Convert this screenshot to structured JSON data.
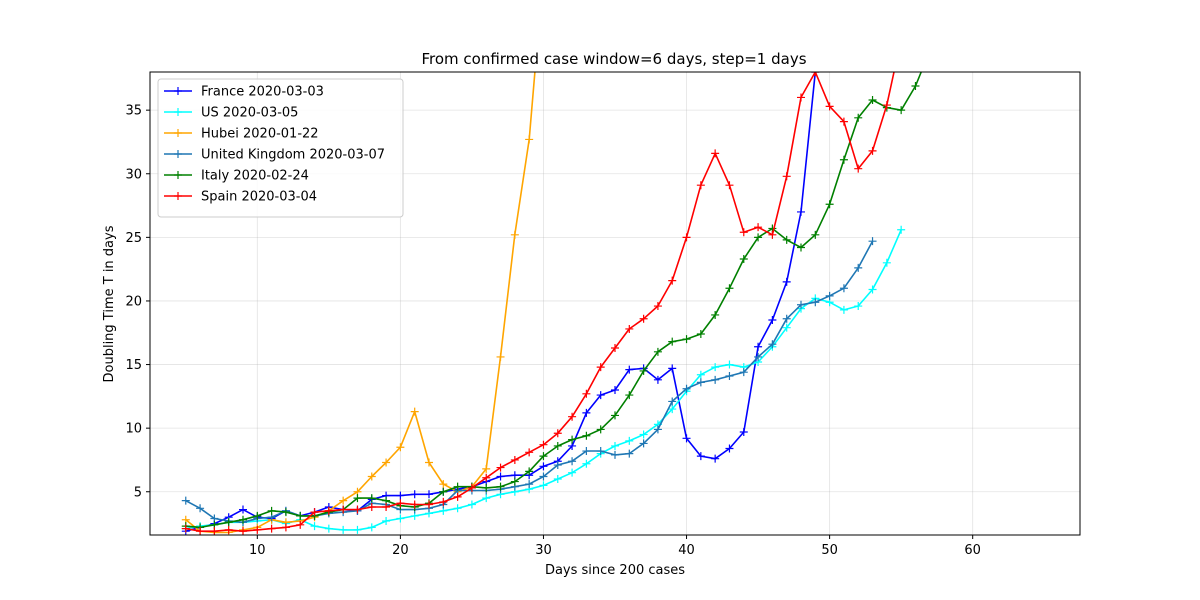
{
  "chart_data": {
    "type": "line",
    "title": "From confirmed case window=6 days, step=1 days",
    "xlabel": "Days since 200 cases",
    "ylabel": "Doubling Time T in days",
    "xlim": [
      2.5,
      67.5
    ],
    "ylim": [
      1.6,
      38
    ],
    "xticks": [
      10,
      20,
      30,
      40,
      50,
      60
    ],
    "yticks": [
      5,
      10,
      15,
      20,
      25,
      30,
      35
    ],
    "grid": true,
    "legend_position": "top-left",
    "marker": "plus",
    "series": [
      {
        "name": "France 2020-03-03",
        "color": "#0000ff",
        "x": [
          5,
          6,
          7,
          8,
          9,
          10,
          11,
          12,
          13,
          14,
          15,
          16,
          17,
          18,
          19,
          20,
          21,
          22,
          23,
          24,
          25,
          26,
          27,
          28,
          29,
          30,
          31,
          32,
          33,
          34,
          35,
          36,
          37,
          38,
          39,
          40,
          41,
          42,
          43,
          44,
          45,
          46,
          47,
          48,
          49
        ],
        "y": [
          1.9,
          2.2,
          2.5,
          3.0,
          3.6,
          3.0,
          2.9,
          3.5,
          3.1,
          3.4,
          3.8,
          3.6,
          3.5,
          4.4,
          4.7,
          4.7,
          4.8,
          4.8,
          5.0,
          5.2,
          5.4,
          5.8,
          6.2,
          6.3,
          6.3,
          7.0,
          7.4,
          8.6,
          11.2,
          12.6,
          13.0,
          14.6,
          14.7,
          13.8,
          14.7,
          9.2,
          7.8,
          7.6,
          8.4,
          9.7,
          16.4,
          18.5,
          21.5,
          27.0,
          38.0
        ]
      },
      {
        "name": "US 2020-03-05",
        "color": "#00ffff",
        "x": [
          5,
          6,
          7,
          8,
          9,
          10,
          11,
          12,
          13,
          14,
          15,
          16,
          17,
          18,
          19,
          20,
          21,
          22,
          23,
          24,
          25,
          26,
          27,
          28,
          29,
          30,
          31,
          32,
          33,
          34,
          35,
          36,
          37,
          38,
          39,
          40,
          41,
          42,
          43,
          44,
          45,
          46,
          47,
          48,
          49,
          50,
          51,
          52,
          53,
          54,
          55
        ],
        "y": [
          2.1,
          2.3,
          2.4,
          2.6,
          2.6,
          2.7,
          2.8,
          2.5,
          2.8,
          2.3,
          2.1,
          2.0,
          2.0,
          2.2,
          2.7,
          2.9,
          3.1,
          3.3,
          3.5,
          3.7,
          4.0,
          4.5,
          4.8,
          5.0,
          5.2,
          5.5,
          6.0,
          6.5,
          7.2,
          8.0,
          8.6,
          9.0,
          9.5,
          10.3,
          11.5,
          12.9,
          14.2,
          14.8,
          15.0,
          14.8,
          15.2,
          16.4,
          17.9,
          19.4,
          20.2,
          19.9,
          19.3,
          19.6,
          20.9,
          23.0,
          25.6
        ]
      },
      {
        "name": "Hubei 2020-01-22",
        "color": "#ffa500",
        "x": [
          5,
          6,
          7,
          8,
          9,
          10,
          11,
          12,
          13,
          14,
          15,
          16,
          17,
          18,
          19,
          20,
          21,
          22,
          23,
          24,
          25,
          26,
          27,
          28,
          29,
          29.4
        ],
        "y": [
          2.8,
          1.9,
          1.8,
          1.8,
          2.0,
          2.2,
          2.8,
          2.6,
          2.7,
          3.0,
          3.5,
          4.3,
          5.0,
          6.2,
          7.3,
          8.5,
          11.3,
          7.3,
          5.6,
          5.0,
          5.4,
          6.8,
          15.6,
          25.2,
          32.7,
          38.0
        ]
      },
      {
        "name": "United Kingdom 2020-03-07",
        "color": "#1f77b4",
        "x": [
          5,
          6,
          7,
          8,
          9,
          10,
          11,
          12,
          13,
          14,
          15,
          16,
          17,
          18,
          19,
          20,
          21,
          22,
          23,
          24,
          25,
          26,
          27,
          28,
          29,
          30,
          31,
          32,
          33,
          34,
          35,
          36,
          37,
          38,
          39,
          40,
          41,
          42,
          43,
          44,
          45,
          46,
          47,
          48,
          49,
          50,
          51,
          52,
          53
        ],
        "y": [
          4.3,
          3.7,
          2.9,
          2.7,
          2.6,
          2.9,
          3.0,
          3.5,
          3.1,
          3.1,
          3.3,
          3.4,
          3.5,
          4.1,
          4.0,
          3.6,
          3.6,
          3.7,
          4.0,
          5.1,
          5.1,
          5.1,
          5.2,
          5.4,
          5.6,
          6.2,
          7.1,
          7.4,
          8.2,
          8.2,
          7.9,
          8.0,
          8.8,
          9.9,
          12.1,
          13.1,
          13.6,
          13.8,
          14.1,
          14.4,
          15.6,
          16.6,
          18.6,
          19.7,
          19.9,
          20.4,
          21.0,
          22.6,
          24.7
        ]
      },
      {
        "name": "Italy 2020-02-24",
        "color": "#008000",
        "x": [
          5,
          6,
          7,
          8,
          9,
          10,
          11,
          12,
          13,
          14,
          15,
          16,
          17,
          18,
          19,
          20,
          21,
          22,
          23,
          24,
          25,
          26,
          27,
          28,
          29,
          30,
          31,
          32,
          33,
          34,
          35,
          36,
          37,
          38,
          39,
          40,
          41,
          42,
          43,
          44,
          45,
          46,
          47,
          48,
          49,
          50,
          51,
          52,
          53,
          54,
          55,
          56,
          56.4
        ],
        "y": [
          2.3,
          2.2,
          2.4,
          2.6,
          2.8,
          3.1,
          3.5,
          3.4,
          3.1,
          3.1,
          3.4,
          3.6,
          4.5,
          4.5,
          4.3,
          3.9,
          3.8,
          4.1,
          5.0,
          5.4,
          5.4,
          5.3,
          5.4,
          5.8,
          6.6,
          7.8,
          8.6,
          9.1,
          9.4,
          9.9,
          11.0,
          12.6,
          14.5,
          16.0,
          16.8,
          17.0,
          17.4,
          18.9,
          21.0,
          23.3,
          25.0,
          25.7,
          24.8,
          24.2,
          25.2,
          27.6,
          31.1,
          34.4,
          35.8,
          35.2,
          35.0,
          36.9,
          38.0
        ]
      },
      {
        "name": "Spain 2020-03-04",
        "color": "#ff0000",
        "x": [
          5,
          6,
          7,
          8,
          9,
          10,
          11,
          12,
          13,
          14,
          15,
          16,
          17,
          18,
          19,
          20,
          21,
          22,
          23,
          24,
          25,
          26,
          27,
          28,
          29,
          30,
          31,
          32,
          33,
          34,
          35,
          36,
          37,
          38,
          39,
          40,
          41,
          42,
          43,
          44,
          45,
          46,
          47,
          48,
          49,
          50,
          51,
          52,
          53,
          54,
          54.5
        ],
        "y": [
          2.1,
          1.9,
          1.9,
          2.0,
          1.9,
          2.0,
          2.1,
          2.2,
          2.4,
          3.4,
          3.5,
          3.6,
          3.6,
          3.8,
          3.8,
          4.1,
          4.0,
          4.0,
          4.2,
          4.6,
          5.3,
          6.1,
          6.9,
          7.5,
          8.1,
          8.7,
          9.6,
          10.9,
          12.7,
          14.8,
          16.3,
          17.8,
          18.6,
          19.6,
          21.6,
          25.0,
          29.1,
          31.6,
          29.1,
          25.4,
          25.8,
          25.2,
          29.8,
          36.0,
          38.0,
          35.3,
          34.1,
          30.4,
          31.8,
          35.4,
          38.0
        ]
      }
    ]
  }
}
